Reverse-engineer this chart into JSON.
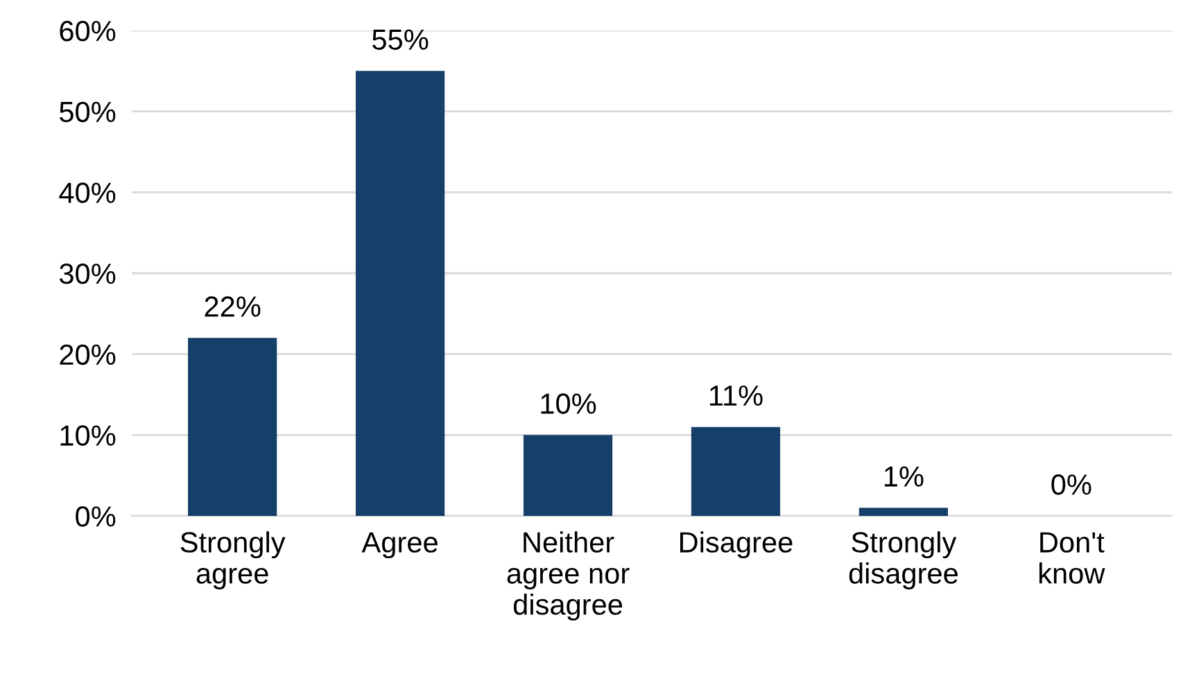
{
  "chart_data": {
    "type": "bar",
    "categories": [
      "Strongly\nagree",
      "Agree",
      "Neither\nagree nor\ndisagree",
      "Disagree",
      "Strongly\ndisagree",
      "Don't\nknow"
    ],
    "values": [
      22,
      55,
      10,
      11,
      1,
      0
    ],
    "value_labels": [
      "22%",
      "55%",
      "10%",
      "11%",
      "1%",
      "0%"
    ],
    "color": "#16406a",
    "ylim": [
      0,
      60
    ],
    "yticks": [
      {
        "value": 0,
        "label": "0%"
      },
      {
        "value": 10,
        "label": "10%"
      },
      {
        "value": 20,
        "label": "20%"
      },
      {
        "value": 30,
        "label": "30%"
      },
      {
        "value": 40,
        "label": "40%"
      },
      {
        "value": 50,
        "label": "50%"
      },
      {
        "value": 60,
        "label": "60%"
      }
    ],
    "grid": "y",
    "legend": false
  }
}
